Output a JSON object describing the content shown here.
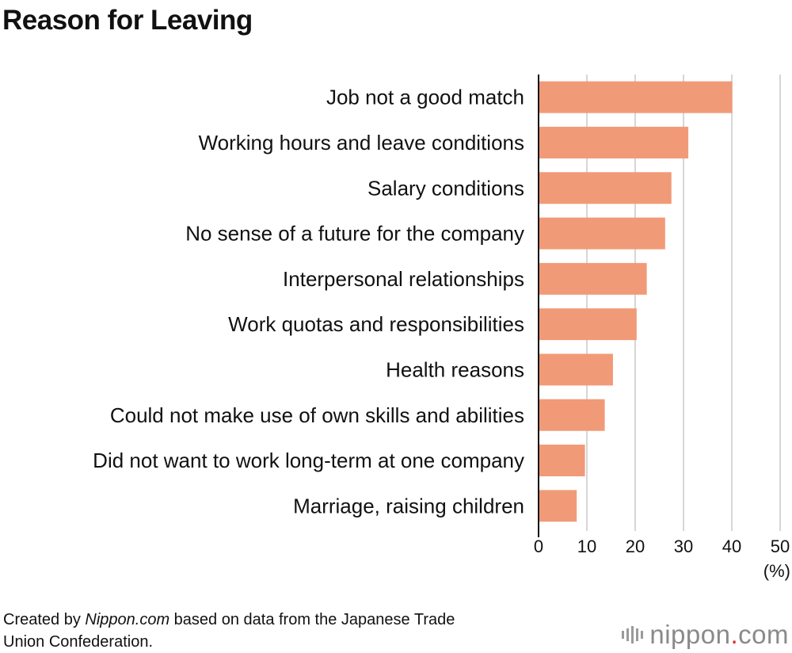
{
  "title": "Reason for Leaving",
  "chart_data": {
    "type": "bar",
    "orientation": "horizontal",
    "title": "Reason for Leaving",
    "unit_label": "(%)",
    "categories": [
      "Job not a good match",
      "Working hours and leave conditions",
      "Salary conditions",
      "No sense of a future for the company",
      "Interpersonal relationships",
      "Work quotas and responsibilities",
      "Health reasons",
      "Could not make use of own skills and abilities",
      "Did not want to work long-term at one company",
      "Marriage, raising children"
    ],
    "values": [
      40.1,
      31.0,
      27.5,
      26.2,
      22.4,
      20.3,
      15.4,
      13.7,
      9.6,
      7.9
    ],
    "xlim": [
      0,
      50
    ],
    "xticks": [
      0,
      10,
      20,
      30,
      40,
      50
    ],
    "grid": true,
    "bar_color": "#f19a78"
  },
  "footer": {
    "created_by": "Created by ",
    "source_name": "Nippon.com",
    "source_text_1": " based on data from the Japanese Trade",
    "source_text_2": "Union Confederation."
  },
  "brand": {
    "name": "nippon",
    "dot": ".",
    "suffix": "com",
    "dot_color": "#d32f2f"
  }
}
